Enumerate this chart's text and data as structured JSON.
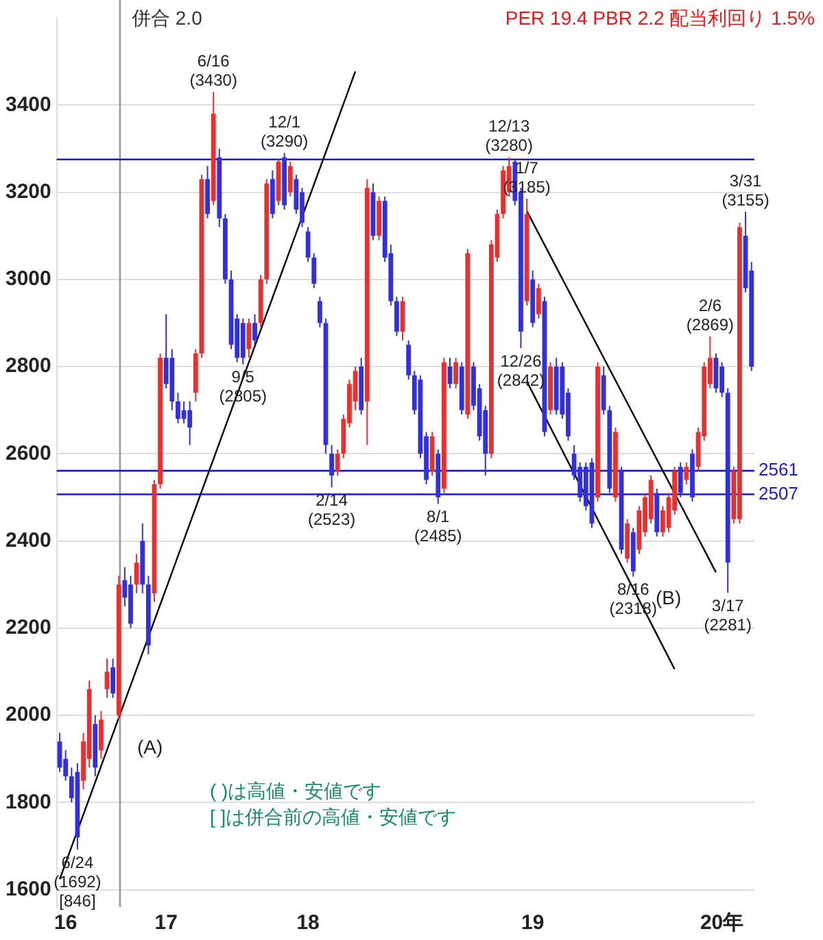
{
  "chart_data": {
    "type": "candlestick",
    "title": "PER 19.4 PBR 2.2 配当利回り 1.5%",
    "categories": [
      null,
      "16",
      null,
      null,
      null,
      null,
      null,
      null,
      null,
      null,
      null,
      null,
      null,
      null,
      null,
      null,
      null,
      null,
      "17",
      null,
      null,
      null,
      null,
      null,
      null,
      null,
      null,
      null,
      null,
      null,
      null,
      null,
      null,
      null,
      null,
      null,
      null,
      null,
      null,
      null,
      null,
      null,
      "18",
      null,
      null,
      null,
      null,
      null,
      null,
      null,
      null,
      null,
      null,
      null,
      null,
      null,
      null,
      null,
      null,
      null,
      null,
      null,
      null,
      null,
      null,
      null,
      null,
      null,
      null,
      null,
      null,
      null,
      null,
      null,
      null,
      null,
      null,
      null,
      null,
      null,
      "19",
      null,
      null,
      null,
      null,
      null,
      null,
      null,
      null,
      null,
      null,
      null,
      null,
      null,
      null,
      null,
      null,
      null,
      null,
      null,
      null,
      null,
      null,
      null,
      null,
      null,
      null,
      null,
      null,
      null,
      null,
      null,
      "20年",
      null,
      null,
      null,
      null,
      null
    ],
    "ohlc": [
      [
        1940,
        1960,
        1870,
        1880
      ],
      [
        1900,
        1920,
        1850,
        1860
      ],
      [
        1860,
        1880,
        1800,
        1810
      ],
      [
        1870,
        1890,
        1692,
        1720
      ],
      [
        1850,
        1960,
        1830,
        1940
      ],
      [
        1900,
        2080,
        1880,
        2060
      ],
      [
        1980,
        2000,
        1860,
        1880
      ],
      [
        1920,
        2010,
        1900,
        1990
      ],
      [
        2060,
        2130,
        2040,
        2100
      ],
      [
        2110,
        2130,
        2040,
        2050
      ],
      [
        2000,
        2320,
        1990,
        2300
      ],
      [
        2310,
        2340,
        2250,
        2270
      ],
      [
        2300,
        2320,
        2200,
        2210
      ],
      [
        2300,
        2370,
        2280,
        2350
      ],
      [
        2400,
        2440,
        2280,
        2300
      ],
      [
        2300,
        2320,
        2140,
        2160
      ],
      [
        2280,
        2540,
        2260,
        2530
      ],
      [
        2530,
        2830,
        2520,
        2820
      ],
      [
        2820,
        2920,
        2750,
        2760
      ],
      [
        2820,
        2840,
        2700,
        2720
      ],
      [
        2720,
        2740,
        2670,
        2680
      ],
      [
        2700,
        2720,
        2670,
        2680
      ],
      [
        2700,
        2720,
        2620,
        2660
      ],
      [
        2740,
        2840,
        2720,
        2830
      ],
      [
        2830,
        3240,
        2820,
        3230
      ],
      [
        3230,
        3260,
        3140,
        3150
      ],
      [
        3180,
        3430,
        3170,
        3380
      ],
      [
        3280,
        3300,
        3120,
        3140
      ],
      [
        3140,
        3150,
        2990,
        3000
      ],
      [
        3000,
        3020,
        2840,
        2850
      ],
      [
        2910,
        2920,
        2810,
        2820
      ],
      [
        2900,
        2910,
        2805,
        2820
      ],
      [
        2840,
        2910,
        2820,
        2900
      ],
      [
        2900,
        2920,
        2850,
        2860
      ],
      [
        2900,
        3010,
        2890,
        3000
      ],
      [
        3000,
        3230,
        2990,
        3220
      ],
      [
        3230,
        3250,
        3140,
        3150
      ],
      [
        3180,
        3275,
        3170,
        3270
      ],
      [
        3280,
        3290,
        3160,
        3170
      ],
      [
        3200,
        3270,
        3190,
        3260
      ],
      [
        3230,
        3240,
        3150,
        3160
      ],
      [
        3200,
        3210,
        3120,
        3130
      ],
      [
        3110,
        3120,
        3040,
        3050
      ],
      [
        3050,
        3060,
        2980,
        2990
      ],
      [
        2950,
        2960,
        2890,
        2900
      ],
      [
        2900,
        2910,
        2600,
        2620
      ],
      [
        2600,
        2620,
        2523,
        2550
      ],
      [
        2560,
        2610,
        2550,
        2600
      ],
      [
        2600,
        2690,
        2590,
        2680
      ],
      [
        2670,
        2770,
        2660,
        2760
      ],
      [
        2720,
        2800,
        2700,
        2790
      ],
      [
        2800,
        2820,
        2690,
        2700
      ],
      [
        2720,
        3230,
        2620,
        3210
      ],
      [
        3200,
        3220,
        3090,
        3100
      ],
      [
        3100,
        3190,
        3090,
        3180
      ],
      [
        3180,
        3190,
        3040,
        3050
      ],
      [
        3060,
        3080,
        2940,
        2950
      ],
      [
        2950,
        2960,
        2870,
        2880
      ],
      [
        2880,
        2960,
        2860,
        2950
      ],
      [
        2850,
        2860,
        2770,
        2780
      ],
      [
        2780,
        2790,
        2690,
        2700
      ],
      [
        2770,
        2780,
        2590,
        2600
      ],
      [
        2640,
        2650,
        2530,
        2540
      ],
      [
        2560,
        2650,
        2550,
        2640
      ],
      [
        2600,
        2610,
        2485,
        2500
      ],
      [
        2520,
        2820,
        2510,
        2810
      ],
      [
        2800,
        2820,
        2750,
        2760
      ],
      [
        2760,
        2820,
        2750,
        2810
      ],
      [
        2800,
        2810,
        2690,
        2700
      ],
      [
        2690,
        3070,
        2680,
        3060
      ],
      [
        2800,
        2810,
        2700,
        2710
      ],
      [
        2750,
        2760,
        2630,
        2640
      ],
      [
        2700,
        2710,
        2550,
        2600
      ],
      [
        2600,
        3090,
        2590,
        3080
      ],
      [
        3050,
        3160,
        3040,
        3150
      ],
      [
        3150,
        3260,
        3140,
        3250
      ],
      [
        3200,
        3280,
        3190,
        3260
      ],
      [
        3270,
        3275,
        3170,
        3180
      ],
      [
        3200,
        3210,
        2842,
        2880
      ],
      [
        2950,
        3185,
        2940,
        3150
      ],
      [
        3000,
        3020,
        2890,
        2900
      ],
      [
        2920,
        2990,
        2910,
        2980
      ],
      [
        2950,
        2960,
        2640,
        2650
      ],
      [
        2700,
        2810,
        2690,
        2800
      ],
      [
        2800,
        2820,
        2690,
        2700
      ],
      [
        2800,
        2810,
        2680,
        2690
      ],
      [
        2740,
        2750,
        2630,
        2640
      ],
      [
        2600,
        2620,
        2540,
        2550
      ],
      [
        2570,
        2580,
        2490,
        2500
      ],
      [
        2570,
        2580,
        2470,
        2480
      ],
      [
        2580,
        2590,
        2430,
        2440
      ],
      [
        2500,
        2810,
        2490,
        2800
      ],
      [
        2780,
        2800,
        2690,
        2700
      ],
      [
        2700,
        2710,
        2510,
        2520
      ],
      [
        2500,
        2660,
        2490,
        2650
      ],
      [
        2560,
        2570,
        2370,
        2380
      ],
      [
        2360,
        2450,
        2350,
        2440
      ],
      [
        2420,
        2430,
        2318,
        2330
      ],
      [
        2380,
        2480,
        2370,
        2470
      ],
      [
        2420,
        2510,
        2410,
        2500
      ],
      [
        2450,
        2550,
        2440,
        2540
      ],
      [
        2510,
        2520,
        2410,
        2420
      ],
      [
        2420,
        2480,
        2410,
        2470
      ],
      [
        2430,
        2510,
        2420,
        2500
      ],
      [
        2470,
        2570,
        2460,
        2560
      ],
      [
        2570,
        2580,
        2500,
        2510
      ],
      [
        2540,
        2580,
        2530,
        2570
      ],
      [
        2600,
        2610,
        2490,
        2500
      ],
      [
        2570,
        2660,
        2560,
        2650
      ],
      [
        2640,
        2810,
        2630,
        2800
      ],
      [
        2760,
        2869,
        2750,
        2820
      ],
      [
        2820,
        2830,
        2740,
        2750
      ],
      [
        2800,
        2810,
        2730,
        2740
      ],
      [
        2740,
        2750,
        2281,
        2350
      ],
      [
        2450,
        2570,
        2440,
        2560
      ],
      [
        2450,
        3130,
        2440,
        3120
      ],
      [
        3100,
        3155,
        2970,
        2980
      ],
      [
        3020,
        3040,
        2790,
        2800
      ]
    ],
    "colors": [
      "#3030e0",
      "#3030e0",
      "#3030e0",
      "#3030e0",
      "#e83030",
      "#e83030",
      "#3030e0",
      "#e83030",
      "#e83030",
      "#3030e0",
      "#e83030",
      "#3030e0",
      "#3030e0",
      "#e83030",
      "#3030e0",
      "#3030e0",
      "#e83030",
      "#e83030",
      "#3030e0",
      "#3030e0",
      "#3030e0",
      "#3030e0",
      "#3030e0",
      "#e83030",
      "#e83030",
      "#3030e0",
      "#e83030",
      "#3030e0",
      "#3030e0",
      "#3030e0",
      "#3030e0",
      "#3030e0",
      "#e83030",
      "#3030e0",
      "#e83030",
      "#e83030",
      "#3030e0",
      "#e83030",
      "#3030e0",
      "#e83030",
      "#3030e0",
      "#3030e0",
      "#3030e0",
      "#3030e0",
      "#3030e0",
      "#3030e0",
      "#3030e0",
      "#e83030",
      "#e83030",
      "#e83030",
      "#e83030",
      "#3030e0",
      "#e83030",
      "#3030e0",
      "#e83030",
      "#3030e0",
      "#3030e0",
      "#3030e0",
      "#e83030",
      "#3030e0",
      "#3030e0",
      "#3030e0",
      "#3030e0",
      "#e83030",
      "#3030e0",
      "#e83030",
      "#3030e0",
      "#e83030",
      "#3030e0",
      "#e83030",
      "#3030e0",
      "#3030e0",
      "#3030e0",
      "#e83030",
      "#e83030",
      "#e83030",
      "#e83030",
      "#3030e0",
      "#3030e0",
      "#e83030",
      "#3030e0",
      "#e83030",
      "#3030e0",
      "#e83030",
      "#3030e0",
      "#3030e0",
      "#3030e0",
      "#3030e0",
      "#3030e0",
      "#3030e0",
      "#3030e0",
      "#e83030",
      "#3030e0",
      "#3030e0",
      "#e83030",
      "#3030e0",
      "#e83030",
      "#3030e0",
      "#e83030",
      "#e83030",
      "#e83030",
      "#3030e0",
      "#e83030",
      "#e83030",
      "#e83030",
      "#3030e0",
      "#e83030",
      "#3030e0",
      "#e83030",
      "#e83030",
      "#e83030",
      "#3030e0",
      "#3030e0",
      "#3030e0",
      "#e83030",
      "#e83030",
      "#3030e0",
      "#3030e0"
    ],
    "series": [
      {
        "type": "line",
        "values": [
          1624,
          null,
          null,
          null,
          null,
          null,
          null,
          null,
          null,
          null,
          null,
          null,
          null,
          null,
          null,
          null,
          null,
          null,
          null,
          null,
          null,
          null,
          null,
          null,
          null,
          null,
          null,
          null,
          null,
          null,
          null,
          null,
          null,
          null,
          null,
          null,
          null,
          null,
          null,
          null,
          null,
          null,
          null,
          null,
          null,
          null,
          null,
          null,
          null,
          null,
          3477,
          null,
          null,
          null,
          null,
          null,
          null,
          null,
          null,
          null,
          null,
          null,
          null,
          null,
          null,
          null,
          null,
          null,
          null,
          null,
          null,
          null,
          null,
          null,
          null,
          null,
          null,
          null,
          null,
          null,
          null,
          null,
          null,
          null,
          null,
          null,
          null,
          null,
          null,
          null,
          null,
          null,
          null,
          null,
          null,
          null,
          null,
          null,
          null,
          null,
          null,
          null,
          null,
          null,
          null,
          null,
          null,
          null,
          null,
          null,
          null,
          null,
          null,
          null,
          null,
          null,
          null,
          null
        ],
        "color": "#000000"
      },
      {
        "type": "line",
        "values": [
          null,
          null,
          null,
          null,
          null,
          null,
          null,
          null,
          null,
          null,
          null,
          null,
          null,
          null,
          null,
          null,
          null,
          null,
          null,
          null,
          null,
          null,
          null,
          null,
          null,
          null,
          null,
          null,
          null,
          null,
          null,
          null,
          null,
          null,
          null,
          null,
          null,
          null,
          null,
          null,
          null,
          null,
          null,
          null,
          null,
          null,
          null,
          null,
          null,
          null,
          null,
          null,
          null,
          null,
          null,
          null,
          null,
          null,
          null,
          null,
          null,
          null,
          null,
          null,
          null,
          null,
          null,
          null,
          null,
          null,
          null,
          null,
          null,
          null,
          null,
          null,
          null,
          null,
          null,
          3157,
          null,
          null,
          null,
          null,
          null,
          null,
          null,
          null,
          null,
          null,
          null,
          null,
          null,
          null,
          null,
          null,
          null,
          null,
          null,
          null,
          null,
          null,
          null,
          null,
          null,
          null,
          null,
          null,
          null,
          null,
          null,
          2328,
          null,
          null,
          null,
          null,
          null,
          null
        ],
        "color": "#000000"
      },
      {
        "type": "line",
        "values": [
          null,
          null,
          null,
          null,
          null,
          null,
          null,
          null,
          null,
          null,
          null,
          null,
          null,
          null,
          null,
          null,
          null,
          null,
          null,
          null,
          null,
          null,
          null,
          null,
          null,
          null,
          null,
          null,
          null,
          null,
          null,
          null,
          null,
          null,
          null,
          null,
          null,
          null,
          null,
          null,
          null,
          null,
          null,
          null,
          null,
          null,
          null,
          null,
          null,
          null,
          null,
          null,
          null,
          null,
          null,
          null,
          null,
          null,
          null,
          null,
          null,
          null,
          null,
          null,
          null,
          null,
          null,
          null,
          null,
          null,
          null,
          null,
          null,
          null,
          null,
          null,
          null,
          null,
          null,
          2766,
          null,
          null,
          null,
          null,
          null,
          null,
          null,
          null,
          null,
          null,
          null,
          null,
          null,
          null,
          null,
          null,
          null,
          null,
          null,
          null,
          null,
          null,
          null,
          null,
          2106,
          null,
          null,
          null,
          null,
          null,
          null,
          null,
          null,
          null,
          null,
          null,
          null,
          null
        ],
        "color": "#000000"
      }
    ],
    "ylim": [
      1560,
      3600
    ],
    "yticks": [
      1600,
      1800,
      2000,
      2200,
      2400,
      2600,
      2800,
      3000,
      3200,
      3400
    ],
    "grid": "y",
    "ref_lines": [
      {
        "axis": "y",
        "value": 3275,
        "color": "#1a1ad0"
      },
      {
        "axis": "y",
        "value": 2561,
        "label": "2561",
        "color": "#1a1ad0"
      },
      {
        "axis": "y",
        "value": 2507,
        "label": "2507",
        "color": "#1a1ad0"
      }
    ],
    "annotations": [
      {
        "text": "6/16\n(3430)",
        "y": 3430
      },
      {
        "text": "9/5\n(2805)",
        "y": 2805
      },
      {
        "text": "12/1\n(3290)",
        "y": 3290
      },
      {
        "text": "2/14\n(2523)",
        "y": 2523
      },
      {
        "text": "8/1\n(2485)",
        "y": 2485
      },
      {
        "text": "12/13\n(3280)",
        "y": 3280
      },
      {
        "text": "12/26\n(2842)",
        "y": 2842
      },
      {
        "text": "1/7\n(3185)",
        "y": 3185
      },
      {
        "text": "8/16\n(2318)",
        "y": 2318
      },
      {
        "text": "2/6\n(2869)",
        "y": 2869
      },
      {
        "text": "3/17\n(2281)",
        "y": 2281
      },
      {
        "text": "3/31\n(3155)",
        "y": 3155
      },
      {
        "text": "6/24\n(1692)\n[846]",
        "y": 1692
      },
      "(A)",
      "(B)",
      "( )は高値・安値です",
      "[ ]は併合前の高値・安値です",
      "併合 2.0"
    ]
  }
}
